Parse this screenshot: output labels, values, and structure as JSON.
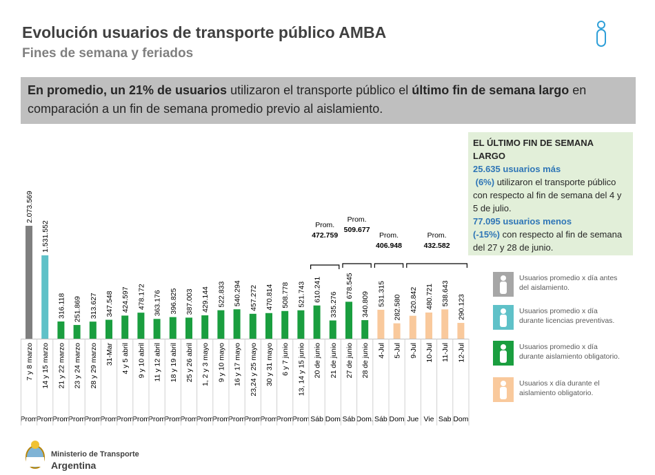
{
  "header": {
    "title": "Evolución usuarios de transporte público AMBA",
    "subtitle": "Fines de semana y feriados"
  },
  "headline": {
    "part1": "En promedio, un 21% de usuarios",
    "part2": " utilizaron el transporte público el ",
    "part3": "último fin de semana largo",
    "part4": " en comparación a un fin de semana promedio previo al aislamiento."
  },
  "chart_data": {
    "type": "bar",
    "categories": [
      "7 y 8 marzo",
      "14 y 15 marzo",
      "21 y 22 marzo",
      "23 y 24 marzo",
      "28 y 29 marzo",
      "31-Mar",
      "4 y 5 abril",
      "9 y 10 abril",
      "11 y 12 abril",
      "18 y 19 abril",
      "25 y 26 abril",
      "1, 2 y 3 mayo",
      "9 y 10 mayo",
      "16 y 17 mayo",
      "23,24 y 25 mayo",
      "30 y 31 mayo",
      "6 y 7 junio",
      "13, 14 y 15 junio",
      "20 de junio",
      "21 de junio",
      "27 de junio",
      "28 de junio",
      "4-Jul",
      "5-Jul",
      "9-Jul",
      "10-Jul",
      "11-Jul",
      "12-Jul"
    ],
    "day_labels": [
      "Prom",
      "Prom",
      "Prom",
      "Prom",
      "Prom",
      "Prom",
      "Prom",
      "Prom",
      "Prom",
      "Prom",
      "Prom",
      "Prom",
      "Prom",
      "Prom",
      "Prom",
      "Prom",
      "Prom",
      "Prom",
      "Sáb",
      "Dom",
      "Sáb",
      "Dom.",
      "Sáb",
      "Dom",
      "Jue",
      "Vie",
      "Sab",
      "Dom"
    ],
    "values": [
      2073569,
      1531552,
      316118,
      251869,
      313627,
      347548,
      424597,
      478172,
      363176,
      396825,
      387003,
      429144,
      522833,
      540294,
      457272,
      470814,
      508778,
      521743,
      610241,
      335276,
      678545,
      340809,
      531315,
      282580,
      420842,
      480721,
      538643,
      290123
    ],
    "value_labels": [
      "2.073.569",
      "1.531.552",
      "316.118",
      "251.869",
      "313.627",
      "347.548",
      "424.597",
      "478.172",
      "363.176",
      "396.825",
      "387.003",
      "429.144",
      "522.833",
      "540.294",
      "457.272",
      "470.814",
      "508.778",
      "521.743",
      "610.241",
      "335.276",
      "678.545",
      "340.809",
      "531.315",
      "282.580",
      "420.842",
      "480.721",
      "538.643",
      "290.123"
    ],
    "colors": [
      "#7f7f7f",
      "#5fc1c8",
      "#1a9e3f",
      "#1a9e3f",
      "#1a9e3f",
      "#1a9e3f",
      "#1a9e3f",
      "#1a9e3f",
      "#1a9e3f",
      "#1a9e3f",
      "#1a9e3f",
      "#1a9e3f",
      "#1a9e3f",
      "#1a9e3f",
      "#1a9e3f",
      "#1a9e3f",
      "#1a9e3f",
      "#1a9e3f",
      "#1a9e3f",
      "#1a9e3f",
      "#1a9e3f",
      "#1a9e3f",
      "#f9c99c",
      "#f9c99c",
      "#f9c99c",
      "#f9c99c",
      "#f9c99c",
      "#f9c99c"
    ],
    "annotations": [
      {
        "text": "Prom.",
        "value": {
          "value": 472759,
          "label": "472.759"
        }
      },
      {
        "text": "Prom.",
        "value": {
          "value": 509677,
          "label": "509.677"
        }
      },
      {
        "text": "Prom.",
        "value": {
          "value": 406948,
          "label": "406.948"
        }
      },
      {
        "text": "Prom.",
        "value": {
          "value": 432582,
          "label": "432.582"
        }
      }
    ],
    "legend": [
      {
        "label": "Usuarios promedio x día antes del aislamiento.",
        "color": "#a6a6a6"
      },
      {
        "label": "Usuarios promedio x día durante licencias preventivas.",
        "color": "#5fc1c8"
      },
      {
        "label": "Usuarios promedio x día durante aislamiento obligatorio.",
        "color": "#1a9e3f"
      },
      {
        "label": "Usuarios x día durante el aislamiento obligatorio.",
        "color": "#f9c99c"
      }
    ]
  },
  "info_box": {
    "title": "EL ÚLTIMO FIN DE SEMANA LARGO",
    "line1_bold": "25.635 usuarios más",
    "line2_bold": "(6%)",
    "line2": " utilizaron el transporte público con respecto al fin de semana del 4 y 5 de julio.",
    "line3_bold": "77.095 usuarios menos",
    "line4_bold": "(-15%)",
    "line4": " con respecto al fin de semana del 27 y 28 de junio."
  },
  "footer": {
    "ministry": "Ministerio de Transporte",
    "country": "Argentina"
  }
}
